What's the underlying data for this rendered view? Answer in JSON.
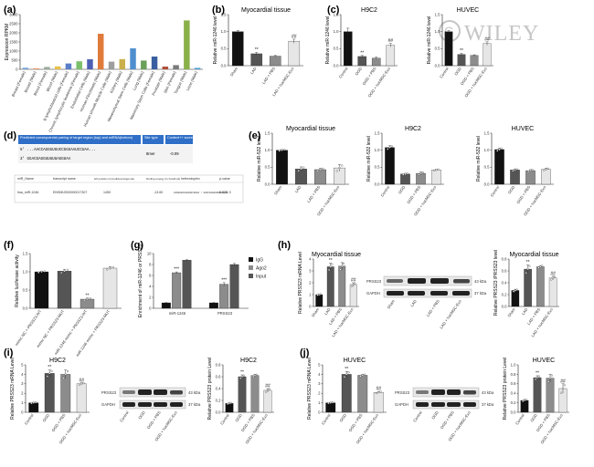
{
  "watermark": "WILEY",
  "colors": {
    "black": "#111111",
    "dark": "#555555",
    "mid": "#8c8c8c",
    "light": "#e6e6e6"
  },
  "panel_labels": [
    "(a)",
    "(b)",
    "(c)",
    "(d)",
    "(e)",
    "(f)",
    "(g)",
    "(h)",
    "(i)",
    "(j)"
  ],
  "chart_data": [
    {
      "id": "a",
      "type": "bar",
      "title": "",
      "ylabel": "Expression RPKM",
      "ylim": [
        0,
        3000
      ],
      "yticks": [
        0,
        500,
        1000,
        1500,
        2000,
        2500,
        3000
      ],
      "categories": [
        "Breast (Female)",
        "Breast (Male)",
        "Blood (Female)",
        "Blood (Male)",
        "B lymphoblastoid cells (Female)",
        "Chronic lymphocytic leukemia (Female)",
        "Endothelial Cells (Male)",
        "Human Fibroblasts (Male)",
        "Human smooth Muscle Cells (Male)",
        "Kidney (Male)",
        "Mesenchymal Stem Cells (Male)",
        "Lung (Male)",
        "Mammary Stem Cells (Female)",
        "Prostate (Male)",
        "Skin (Female)",
        "Tongue (Male)",
        "Urine (Male)"
      ],
      "values": [
        90,
        60,
        130,
        160,
        320,
        440,
        550,
        1950,
        420,
        560,
        1150,
        480,
        700,
        150,
        230,
        2680,
        80
      ],
      "colors": [
        "#7ba7d9",
        "#e89b6b",
        "#9aaa9a",
        "#e8c04a",
        "#5b7ec9",
        "#7bbf6a",
        "#4c5fb3",
        "#e07a3a",
        "#9e9e9e",
        "#c9b04a",
        "#4f8fcf",
        "#6aa05a",
        "#3a5fa0",
        "#b0503a",
        "#7a7a7a",
        "#8ab04a",
        "#4fa0d0"
      ]
    },
    {
      "id": "b",
      "type": "bar",
      "title": "Myocardial tissue",
      "ylabel": "Relative miR-1246 level",
      "ylim": [
        0,
        1.5
      ],
      "yticks": [
        0.0,
        0.5,
        1.0,
        1.5
      ],
      "categories": [
        "Sham",
        "LAD",
        "LAD + PBS",
        "LAD + hucMSC-Exo"
      ],
      "values": [
        1.0,
        0.35,
        0.28,
        0.72
      ],
      "errors": [
        0.03,
        0.04,
        0.02,
        0.06
      ],
      "sig": [
        "",
        "**",
        "",
        "##"
      ]
    },
    {
      "id": "c1",
      "type": "bar",
      "title": "H9C2",
      "ylabel": "Relative miR-1246 level",
      "ylim": [
        0,
        1.5
      ],
      "yticks": [
        0.0,
        0.5,
        1.0,
        1.5
      ],
      "categories": [
        "Control",
        "OGD",
        "OGD + PBS",
        "OGD + hucMSC-Exo"
      ],
      "values": [
        1.0,
        0.27,
        0.22,
        0.6
      ],
      "errors": [
        0.1,
        0.03,
        0.03,
        0.05
      ],
      "sig": [
        "",
        "**",
        "",
        "##"
      ]
    },
    {
      "id": "c2",
      "type": "bar",
      "title": "HUVEC",
      "ylabel": "Relative miR-1246 level",
      "ylim": [
        0,
        1.5
      ],
      "yticks": [
        0.0,
        0.5,
        1.0,
        1.5
      ],
      "categories": [
        "Control",
        "OGD",
        "OGD + PBS",
        "OGD + hucMSC-Exo"
      ],
      "values": [
        1.0,
        0.33,
        0.3,
        0.65
      ],
      "errors": [
        0.03,
        0.03,
        0.02,
        0.05
      ],
      "sig": [
        "",
        "**",
        "",
        "##"
      ]
    },
    {
      "id": "e1",
      "type": "bar",
      "title": "Myocardial tissue",
      "ylabel": "Relative miR-532 level",
      "ylim": [
        0,
        1.5
      ],
      "yticks": [
        0.0,
        0.5,
        1.0,
        1.5
      ],
      "categories": [
        "Sham",
        "LAD",
        "LAD + PBS",
        "OGD + hucMSC-Exo"
      ],
      "values": [
        1.0,
        0.45,
        0.43,
        0.48
      ],
      "errors": [
        0.02,
        0.06,
        0.04,
        0.1
      ],
      "sig": [
        "",
        "",
        "",
        ""
      ]
    },
    {
      "id": "e2",
      "type": "bar",
      "title": "H9C2",
      "ylabel": "Relative miR-532 level",
      "ylim": [
        0,
        1.5
      ],
      "yticks": [
        0.0,
        0.5,
        1.0,
        1.5
      ],
      "categories": [
        "Control",
        "OGD",
        "OGD + PBS",
        "OGD + hucMSC-Exo"
      ],
      "values": [
        1.08,
        0.3,
        0.32,
        0.42
      ],
      "errors": [
        0.05,
        0.02,
        0.04,
        0.02
      ],
      "sig": [
        "",
        "",
        "",
        ""
      ]
    },
    {
      "id": "e3",
      "type": "bar",
      "title": "HUVEC",
      "ylabel": "Relative miR-532 level",
      "ylim": [
        0,
        1.5
      ],
      "yticks": [
        0.0,
        0.5,
        1.0,
        1.5
      ],
      "categories": [
        "Control",
        "OGD",
        "OGD + PBS",
        "OGD + hucMSC-Exo"
      ],
      "values": [
        1.02,
        0.42,
        0.4,
        0.44
      ],
      "errors": [
        0.04,
        0.03,
        0.03,
        0.03
      ],
      "sig": [
        "",
        "",
        "",
        ""
      ]
    },
    {
      "id": "f",
      "type": "bar",
      "title": "",
      "ylabel": "Relative luciferase activity",
      "ylim": [
        0,
        1.5
      ],
      "yticks": [
        0.0,
        0.5,
        1.0,
        1.5
      ],
      "categories": [
        "mimic NC + PRSS23-WT",
        "mimic NC + PRSS23-MUT",
        "miR-1246 mimic + PRSS23-WT",
        "miR-1246 mimic + PRSS23-MUT"
      ],
      "values": [
        1.0,
        1.02,
        0.25,
        1.1
      ],
      "errors": [
        0.02,
        0.05,
        0.03,
        0.04
      ],
      "sig": [
        "",
        "",
        "**",
        ""
      ]
    },
    {
      "id": "g",
      "type": "bar",
      "title": "",
      "ylabel": "Enrichment of miR-1246 or PRSS23",
      "ylim": [
        0,
        10
      ],
      "yticks": [
        0,
        2,
        4,
        6,
        8,
        10
      ],
      "categories": [
        "miR-1246",
        "PRSS23"
      ],
      "series": [
        {
          "name": "IgG",
          "values": [
            1.0,
            1.0
          ],
          "errors": [
            0.05,
            0.05
          ]
        },
        {
          "name": "Ago2",
          "values": [
            6.5,
            4.4
          ],
          "errors": [
            0.15,
            0.3
          ]
        },
        {
          "name": "Input",
          "values": [
            8.8,
            8.0
          ],
          "errors": [
            0.1,
            0.2
          ]
        }
      ],
      "sig": [
        "***",
        "***"
      ]
    },
    {
      "id": "h1",
      "type": "bar",
      "title": "Myocardial tissue",
      "ylabel": "Relative PRSS23 mRNA Level",
      "ylim": [
        0,
        4
      ],
      "yticks": [
        0,
        1,
        2,
        3,
        4
      ],
      "categories": [
        "Sham",
        "LAD",
        "LAD + PBS",
        "LAD + hucMSC-Exo"
      ],
      "values": [
        1.0,
        3.35,
        3.4,
        1.85
      ],
      "errors": [
        0.05,
        0.3,
        0.3,
        0.15
      ],
      "sig": [
        "",
        "**",
        "",
        "##"
      ]
    },
    {
      "id": "h2",
      "type": "bar",
      "title": "Myocardial tissue",
      "ylabel": "Relative PRSS23 /PRSS23 level",
      "ylim": [
        0,
        0.8
      ],
      "yticks": [
        0.0,
        0.2,
        0.4,
        0.6,
        0.8
      ],
      "categories": [
        "Sham",
        "LAD",
        "LAD + PBS",
        "LAD + hucMSC-Exo"
      ],
      "values": [
        0.27,
        0.63,
        0.67,
        0.48
      ],
      "errors": [
        0.02,
        0.07,
        0.02,
        0.03
      ],
      "sig": [
        "",
        "**",
        "",
        "##"
      ]
    },
    {
      "id": "i1",
      "type": "bar",
      "title": "H9C2",
      "ylabel": "Relative PRSS23 mRNA Level",
      "ylim": [
        0,
        5
      ],
      "yticks": [
        0,
        1,
        2,
        3,
        4,
        5
      ],
      "categories": [
        "Control",
        "OGD",
        "OGD + PBS",
        "OGD + hucMSC-Exo"
      ],
      "values": [
        1.0,
        4.1,
        4.0,
        3.0
      ],
      "errors": [
        0.05,
        0.35,
        0.45,
        0.1
      ],
      "sig": [
        "",
        "**",
        "",
        "##"
      ]
    },
    {
      "id": "i2",
      "type": "bar",
      "title": "H9C2",
      "ylabel": "Relative PRSS23 protein Level",
      "ylim": [
        0,
        0.8
      ],
      "yticks": [
        0.0,
        0.2,
        0.4,
        0.6,
        0.8
      ],
      "categories": [
        "Control",
        "OGD",
        "OGD + PBS",
        "OGD + hucMSC-Exo"
      ],
      "values": [
        0.15,
        0.6,
        0.62,
        0.37
      ],
      "errors": [
        0.01,
        0.03,
        0.02,
        0.03
      ],
      "sig": [
        "",
        "**",
        "",
        "##"
      ]
    },
    {
      "id": "j1",
      "type": "bar",
      "title": "HUVEC",
      "ylabel": "Relative PRSS23 mRNA Level",
      "ylim": [
        0,
        5
      ],
      "yticks": [
        0,
        1,
        2,
        3,
        4,
        5
      ],
      "categories": [
        "Control",
        "OGD",
        "OGD + PBS",
        "OGD + hucMSC-Exo"
      ],
      "values": [
        1.0,
        4.0,
        3.9,
        2.1
      ],
      "errors": [
        0.05,
        0.3,
        0.1,
        0.1
      ],
      "sig": [
        "",
        "**",
        "",
        "##"
      ]
    },
    {
      "id": "j2",
      "type": "bar",
      "title": "HUVEC",
      "ylabel": "Relative PRSS23 protein Level",
      "ylim": [
        0,
        1.0
      ],
      "yticks": [
        0.0,
        0.2,
        0.4,
        0.6,
        0.8,
        1.0
      ],
      "categories": [
        "Control",
        "OGD",
        "OGD + PBS",
        "OGD + hucMSC-Exo"
      ],
      "values": [
        0.25,
        0.73,
        0.72,
        0.5
      ],
      "errors": [
        0.02,
        0.04,
        0.08,
        0.1
      ],
      "sig": [
        "",
        "**",
        "",
        "##"
      ]
    }
  ],
  "pairing": {
    "col_headers": [
      "Predicted consequential pairing of target region (top) and miRNA(bottom)",
      "Site type",
      "Context++ score"
    ],
    "top": "5'   ...AACCAGGGUGUCCGGGAAUCCUAA...",
    "bottom": "3'          GGACGAGGUUUUUAGGUAA",
    "site_type": "8mer",
    "score": "-0.09"
  },
  "binding_table": {
    "headers": [
      "miR_Name",
      "transcript name",
      "left position of predicted target site",
      "binding energy (in Kcal/mol)",
      "heteroduplex",
      "p-value"
    ],
    "row": [
      "hsa_miR-1246",
      "ENSMUS00000017307",
      "1450",
      "-13.60",
      "CAUGGUACAGAAUCUGAA / GUACAAAGUUUAGGGAA",
      "6.52E-3"
    ]
  },
  "blots": {
    "h": {
      "bands": [
        "PRSS23",
        "GAPDH"
      ],
      "sizes": [
        "43 kDa",
        "37 kDa"
      ],
      "lanes": [
        "Sham",
        "LAD",
        "LAD + PBS",
        "LAD + hucMSC-Exo"
      ]
    },
    "i": {
      "bands": [
        "PRSS23",
        "GAPDH"
      ],
      "sizes": [
        "43 kDa",
        "37 kDa"
      ],
      "lanes": [
        "Control",
        "OGD",
        "OGD + PBS",
        "OGD + hucMSC-Exo"
      ]
    },
    "j": {
      "bands": [
        "PRSS23",
        "GAPDH"
      ],
      "sizes": [
        "43 kDa",
        "37 kDa"
      ],
      "lanes": [
        "Control",
        "OGD",
        "OGD + PBS",
        "OGD + hucMSC-Exo"
      ]
    }
  }
}
